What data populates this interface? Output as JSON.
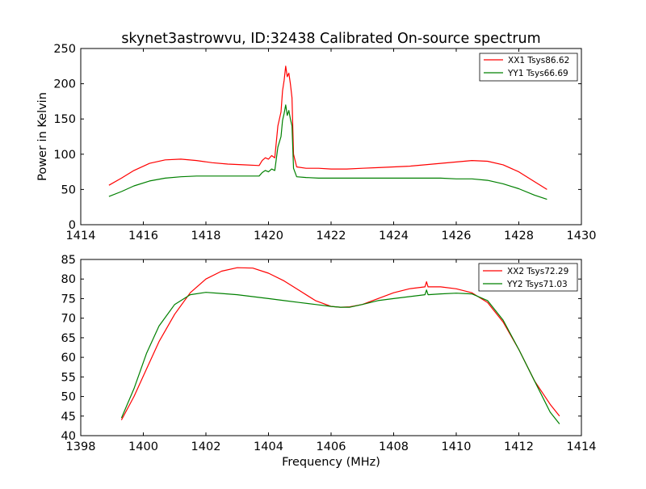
{
  "chart_data": [
    {
      "type": "line",
      "title": "skynet3astrowvu, ID:32438 Calibrated On-source spectrum",
      "xlabel": "",
      "ylabel": "Power in Kelvin",
      "xlim": [
        1414,
        1430
      ],
      "ylim": [
        0,
        250
      ],
      "xticks": [
        "1414",
        "1416",
        "1418",
        "1420",
        "1422",
        "1424",
        "1426",
        "1428",
        "1430"
      ],
      "yticks": [
        "0",
        "50",
        "100",
        "150",
        "200",
        "250"
      ],
      "grid": false,
      "legend_position": "top-right",
      "series": [
        {
          "name": "XX1 Tsys86.62",
          "color": "#ff0000",
          "x": [
            1414.9,
            1415.3,
            1415.7,
            1416.2,
            1416.7,
            1417.2,
            1417.7,
            1418.2,
            1418.7,
            1419.2,
            1419.7,
            1419.8,
            1419.9,
            1420.0,
            1420.1,
            1420.2,
            1420.3,
            1420.4,
            1420.45,
            1420.5,
            1420.55,
            1420.6,
            1420.65,
            1420.7,
            1420.75,
            1420.8,
            1420.9,
            1421.2,
            1421.6,
            1422.0,
            1422.5,
            1423.0,
            1423.5,
            1424.0,
            1424.5,
            1425.0,
            1425.5,
            1426.0,
            1426.5,
            1427.0,
            1427.5,
            1428.0,
            1428.5,
            1428.9
          ],
          "y": [
            56,
            66,
            77,
            87,
            92,
            93,
            91,
            88,
            86,
            85,
            84,
            91,
            95,
            93,
            98,
            95,
            140,
            160,
            190,
            205,
            225,
            210,
            215,
            200,
            180,
            100,
            82,
            80,
            80,
            79,
            79,
            80,
            81,
            82,
            83,
            85,
            87,
            89,
            91,
            90,
            85,
            75,
            61,
            50
          ]
        },
        {
          "name": "YY1 Tsys66.69",
          "color": "#008000",
          "x": [
            1414.9,
            1415.3,
            1415.7,
            1416.2,
            1416.7,
            1417.2,
            1417.7,
            1418.2,
            1418.7,
            1419.2,
            1419.7,
            1419.8,
            1419.9,
            1420.0,
            1420.1,
            1420.2,
            1420.3,
            1420.4,
            1420.45,
            1420.5,
            1420.55,
            1420.6,
            1420.65,
            1420.7,
            1420.75,
            1420.8,
            1420.9,
            1421.2,
            1421.6,
            1422.0,
            1422.5,
            1423.0,
            1423.5,
            1424.0,
            1424.5,
            1425.0,
            1425.5,
            1426.0,
            1426.5,
            1427.0,
            1427.5,
            1428.0,
            1428.5,
            1428.9
          ],
          "y": [
            40,
            47,
            55,
            62,
            66,
            68,
            69,
            69,
            69,
            69,
            69,
            74,
            77,
            75,
            79,
            77,
            110,
            125,
            148,
            158,
            170,
            155,
            162,
            150,
            140,
            80,
            68,
            67,
            66,
            66,
            66,
            66,
            66,
            66,
            66,
            66,
            66,
            65,
            65,
            63,
            58,
            51,
            42,
            36
          ]
        }
      ]
    },
    {
      "type": "line",
      "title": "",
      "xlabel": "Frequency (MHz)",
      "ylabel": "",
      "xlim": [
        1398,
        1414
      ],
      "ylim": [
        40,
        85
      ],
      "xticks": [
        "1398",
        "1400",
        "1402",
        "1404",
        "1406",
        "1408",
        "1410",
        "1412",
        "1414"
      ],
      "yticks": [
        "40",
        "45",
        "50",
        "55",
        "60",
        "65",
        "70",
        "75",
        "80",
        "85"
      ],
      "grid": false,
      "legend_position": "top-right",
      "series": [
        {
          "name": "XX2 Tsys72.29",
          "color": "#ff0000",
          "x": [
            1399.3,
            1399.7,
            1400.1,
            1400.5,
            1401.0,
            1401.5,
            1402.0,
            1402.5,
            1403.0,
            1403.5,
            1404.0,
            1404.5,
            1405.0,
            1405.5,
            1406.0,
            1406.3,
            1406.6,
            1407.0,
            1407.5,
            1408.0,
            1408.5,
            1409.0,
            1409.05,
            1409.1,
            1409.5,
            1410.0,
            1410.5,
            1411.0,
            1411.5,
            1412.0,
            1412.5,
            1413.0,
            1413.3
          ],
          "y": [
            44,
            50,
            57,
            64,
            71,
            76.5,
            80,
            82,
            82.9,
            82.8,
            81.5,
            79.5,
            77,
            74.5,
            73,
            72.8,
            72.9,
            73.5,
            75,
            76.5,
            77.5,
            78,
            79.3,
            78,
            78,
            77.5,
            76.5,
            74,
            69,
            62,
            54,
            48,
            45
          ]
        },
        {
          "name": "YY2 Tsys71.03",
          "color": "#008000",
          "x": [
            1399.3,
            1399.7,
            1400.1,
            1400.5,
            1401.0,
            1401.5,
            1402.0,
            1402.5,
            1403.0,
            1403.5,
            1404.0,
            1404.5,
            1405.0,
            1405.5,
            1406.0,
            1406.3,
            1406.6,
            1407.0,
            1407.5,
            1408.0,
            1408.5,
            1409.0,
            1409.05,
            1409.1,
            1409.5,
            1410.0,
            1410.5,
            1411.0,
            1411.5,
            1412.0,
            1412.5,
            1413.0,
            1413.3
          ],
          "y": [
            44.5,
            52,
            61,
            68,
            73.5,
            76,
            76.6,
            76.3,
            76,
            75.5,
            75,
            74.5,
            74,
            73.5,
            73,
            72.8,
            72.8,
            73.5,
            74.5,
            75,
            75.5,
            76,
            77.2,
            76,
            76.2,
            76.4,
            76.2,
            74.5,
            69.5,
            62,
            54,
            46,
            43
          ]
        }
      ]
    }
  ]
}
